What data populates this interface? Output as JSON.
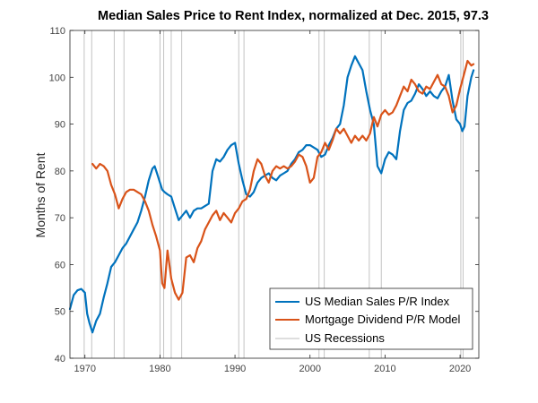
{
  "chart_data": {
    "type": "line",
    "title": "Median Sales Price to Rent Index, normalized at Dec. 2015, 97.3",
    "xlabel": "",
    "ylabel": "Months of Rent",
    "xlim": [
      1968,
      2022.5
    ],
    "ylim": [
      40,
      110
    ],
    "x_ticks": [
      1970,
      1980,
      1990,
      2000,
      2010,
      2020
    ],
    "x_tick_labels": [
      "1970",
      "1980",
      "1990",
      "2000",
      "2010",
      "2020"
    ],
    "y_ticks": [
      40,
      50,
      60,
      70,
      80,
      90,
      100,
      110
    ],
    "y_tick_labels": [
      "40",
      "50",
      "60",
      "70",
      "80",
      "90",
      "100",
      "110"
    ],
    "legend_position": "bottom-right",
    "grid": false,
    "series": [
      {
        "name": "US Median Sales P/R Index",
        "color": "#0072BD",
        "x": [
          1968.0,
          1968.5,
          1969.0,
          1969.5,
          1970.0,
          1970.3,
          1970.6,
          1971.0,
          1971.5,
          1972.0,
          1972.5,
          1973.0,
          1973.5,
          1974.0,
          1974.5,
          1975.0,
          1975.5,
          1976.0,
          1976.5,
          1977.0,
          1977.5,
          1978.0,
          1978.5,
          1979.0,
          1979.3,
          1979.6,
          1980.0,
          1980.3,
          1980.6,
          1981.0,
          1981.5,
          1982.0,
          1982.5,
          1983.0,
          1983.5,
          1984.0,
          1984.5,
          1985.0,
          1985.5,
          1986.0,
          1986.5,
          1987.0,
          1987.5,
          1988.0,
          1988.5,
          1989.0,
          1989.5,
          1990.0,
          1990.5,
          1991.0,
          1991.5,
          1992.0,
          1992.5,
          1993.0,
          1993.5,
          1994.0,
          1994.5,
          1995.0,
          1995.5,
          1996.0,
          1996.5,
          1997.0,
          1997.5,
          1998.0,
          1998.5,
          1999.0,
          1999.5,
          2000.0,
          2000.5,
          2001.0,
          2001.5,
          2002.0,
          2002.5,
          2003.0,
          2003.5,
          2004.0,
          2004.5,
          2005.0,
          2005.5,
          2006.0,
          2006.5,
          2007.0,
          2007.5,
          2008.0,
          2008.5,
          2009.0,
          2009.5,
          2010.0,
          2010.5,
          2011.0,
          2011.5,
          2012.0,
          2012.5,
          2013.0,
          2013.5,
          2014.0,
          2014.5,
          2015.0,
          2015.5,
          2016.0,
          2016.5,
          2017.0,
          2017.5,
          2018.0,
          2018.5,
          2019.0,
          2019.5,
          2020.0,
          2020.3,
          2020.6,
          2021.0,
          2021.5,
          2021.8
        ],
        "y": [
          50.5,
          53.5,
          54.5,
          54.8,
          54.0,
          49.5,
          47.5,
          45.5,
          48.0,
          49.5,
          53.0,
          56.0,
          59.5,
          60.5,
          62.0,
          63.5,
          64.5,
          66.0,
          67.5,
          69.0,
          71.5,
          74.5,
          78.0,
          80.5,
          81.0,
          79.5,
          77.5,
          76.0,
          75.5,
          75.0,
          74.5,
          72.0,
          69.5,
          70.5,
          71.5,
          70.0,
          71.5,
          72.0,
          72.0,
          72.5,
          73.0,
          80.0,
          82.5,
          82.0,
          83.0,
          84.5,
          85.5,
          86.0,
          81.5,
          78.0,
          75.0,
          74.5,
          75.5,
          77.5,
          78.5,
          79.0,
          79.5,
          78.5,
          78.0,
          79.0,
          79.5,
          80.0,
          81.5,
          82.5,
          84.0,
          84.5,
          85.5,
          85.5,
          85.0,
          84.5,
          83.0,
          83.5,
          85.5,
          87.0,
          89.0,
          90.0,
          94.0,
          100.0,
          102.5,
          104.5,
          103.0,
          101.5,
          97.0,
          93.0,
          90.0,
          81.0,
          79.5,
          82.5,
          84.0,
          83.5,
          82.5,
          88.5,
          93.0,
          94.5,
          95.0,
          96.5,
          98.5,
          97.5,
          96.0,
          97.0,
          96.0,
          95.5,
          97.0,
          98.0,
          100.5,
          95.0,
          91.0,
          90.0,
          88.5,
          89.5,
          96.0,
          100.0,
          101.5
        ]
      },
      {
        "name": "Mortgage Dividend P/R Model",
        "color": "#D95319",
        "x": [
          1971.0,
          1971.5,
          1972.0,
          1972.5,
          1973.0,
          1973.5,
          1974.0,
          1974.5,
          1975.0,
          1975.5,
          1976.0,
          1976.5,
          1977.0,
          1977.5,
          1978.0,
          1978.5,
          1979.0,
          1979.5,
          1980.0,
          1980.3,
          1980.6,
          1981.0,
          1981.5,
          1982.0,
          1982.5,
          1983.0,
          1983.5,
          1984.0,
          1984.5,
          1985.0,
          1985.5,
          1986.0,
          1986.5,
          1987.0,
          1987.5,
          1988.0,
          1988.5,
          1989.0,
          1989.5,
          1990.0,
          1990.5,
          1991.0,
          1991.5,
          1992.0,
          1992.5,
          1993.0,
          1993.5,
          1994.0,
          1994.5,
          1995.0,
          1995.5,
          1996.0,
          1996.5,
          1997.0,
          1997.5,
          1998.0,
          1998.5,
          1999.0,
          1999.5,
          2000.0,
          2000.5,
          2001.0,
          2001.5,
          2002.0,
          2002.5,
          2003.0,
          2003.5,
          2004.0,
          2004.5,
          2005.0,
          2005.5,
          2006.0,
          2006.5,
          2007.0,
          2007.5,
          2008.0,
          2008.5,
          2009.0,
          2009.5,
          2010.0,
          2010.5,
          2011.0,
          2011.5,
          2012.0,
          2012.5,
          2013.0,
          2013.5,
          2014.0,
          2014.5,
          2015.0,
          2015.5,
          2016.0,
          2016.5,
          2017.0,
          2017.5,
          2018.0,
          2018.5,
          2019.0,
          2019.5,
          2020.0,
          2020.5,
          2021.0,
          2021.5,
          2021.8
        ],
        "y": [
          81.5,
          80.5,
          81.5,
          81.0,
          80.0,
          77.0,
          75.0,
          72.0,
          74.0,
          75.5,
          76.0,
          76.0,
          75.5,
          75.0,
          73.5,
          71.5,
          68.5,
          66.0,
          63.0,
          56.0,
          55.0,
          63.0,
          57.0,
          54.0,
          52.5,
          54.0,
          61.5,
          62.0,
          60.5,
          63.5,
          65.0,
          67.5,
          69.0,
          70.5,
          71.5,
          69.5,
          71.0,
          70.0,
          69.0,
          71.0,
          72.0,
          73.5,
          74.0,
          76.0,
          80.0,
          82.5,
          81.5,
          79.0,
          77.5,
          80.0,
          81.0,
          80.5,
          81.0,
          80.5,
          81.0,
          82.0,
          83.5,
          83.0,
          81.0,
          77.5,
          78.5,
          83.0,
          84.0,
          86.0,
          84.5,
          86.5,
          89.0,
          88.0,
          89.0,
          87.5,
          86.0,
          87.5,
          86.5,
          87.5,
          86.5,
          88.0,
          91.5,
          89.5,
          92.0,
          93.0,
          92.0,
          92.5,
          94.0,
          96.0,
          98.0,
          97.0,
          99.5,
          98.5,
          97.0,
          96.5,
          98.0,
          97.5,
          99.0,
          100.5,
          98.5,
          98.0,
          96.0,
          92.5,
          94.0,
          97.5,
          100.5,
          103.5,
          102.5,
          102.8
        ]
      }
    ],
    "recessions": {
      "name": "US Recessions",
      "color": "#BDBDBD",
      "dates": [
        1969.9,
        1970.9,
        1973.9,
        1975.2,
        1980.0,
        1980.5,
        1981.5,
        1982.9,
        1990.5,
        1991.2,
        2001.2,
        2001.9,
        2007.9,
        2009.5,
        2020.1,
        2020.4
      ]
    }
  }
}
